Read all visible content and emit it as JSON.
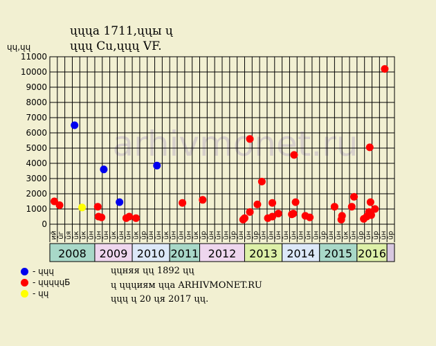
{
  "header": {
    "title": "ųųųа 1711,ųųы ų",
    "subtitle": "ųųų Cu,ųųų VF."
  },
  "watermark": "arhivmonet.ru",
  "legend": [
    {
      "label": "- ųųų",
      "color": "#0000ee"
    },
    {
      "label": "- ųųųųųБ",
      "color": "#ff0000"
    },
    {
      "label": "- ųų",
      "color": "#ffff00"
    }
  ],
  "footer": {
    "line1": "ųųняя ųų 1892 ųų",
    "line2": "ų ųųųиям ųųа ARHIVMONET.RU",
    "line3": "ųųų ų 20 ųя 2017 ųų."
  },
  "chart_data": {
    "type": "scatter",
    "title": "ųųųа 1711,ųųы ų",
    "ylabel": "ųų,ųų",
    "ylim": [
      0,
      11000
    ],
    "yticks": [
      0,
      1000,
      2000,
      3000,
      4000,
      5000,
      6000,
      7000,
      8000,
      9000,
      10000,
      11000
    ],
    "grid": true,
    "months": [
      "ий",
      "ūг",
      "ūя",
      "ūк",
      "ūк",
      "ūн",
      "ūн",
      "ūн",
      "ūк",
      "ūн",
      "ūн",
      "ūк",
      "ūр",
      "ūн",
      "ūн",
      "ūк",
      "ūн",
      "ūн",
      "ūн",
      "ūк",
      "ūр",
      "ūн",
      "ūн",
      "ūн",
      "ūр",
      "ūн",
      "ūн",
      "ūр",
      "ūн",
      "ūн",
      "ūн",
      "ūн",
      "ūн",
      "ūн",
      "ūн",
      "ūн",
      "ūр",
      "ūн",
      "ūн",
      "ūк",
      "ūн",
      "ūр",
      "ūн",
      "ūр",
      "ūн",
      "ūр"
    ],
    "years": [
      {
        "label": "2008",
        "start": 0,
        "end": 6,
        "color": "#a8d8c8"
      },
      {
        "label": "2009",
        "start": 6,
        "end": 11,
        "color": "#eed6ee"
      },
      {
        "label": "2010",
        "start": 11,
        "end": 16,
        "color": "#dce8f8"
      },
      {
        "label": "2011",
        "start": 16,
        "end": 20,
        "color": "#a8d8c8"
      },
      {
        "label": "2012",
        "start": 20,
        "end": 26,
        "color": "#eed6ee"
      },
      {
        "label": "2013",
        "start": 26,
        "end": 31,
        "color": "#ddf0a8"
      },
      {
        "label": "2014",
        "start": 31,
        "end": 36,
        "color": "#dce8f8"
      },
      {
        "label": "2015",
        "start": 36,
        "end": 41,
        "color": "#a8d8c8"
      },
      {
        "label": "2016",
        "start": 41,
        "end": 45,
        "color": "#ddf0a8"
      },
      {
        "label": "",
        "start": 45,
        "end": 46,
        "color": "#d8c8e0"
      }
    ],
    "series": [
      {
        "color": "#0000ee",
        "points": [
          [
            3.3,
            6500
          ],
          [
            7.2,
            3600
          ],
          [
            9.3,
            1450
          ],
          [
            14.3,
            3850
          ]
        ]
      },
      {
        "color": "#ff0000",
        "points": [
          [
            0.6,
            1500
          ],
          [
            1.3,
            1250
          ],
          [
            6.4,
            1150
          ],
          [
            6.5,
            500
          ],
          [
            6.9,
            450
          ],
          [
            10.2,
            400
          ],
          [
            10.6,
            500
          ],
          [
            11.5,
            400
          ],
          [
            17.7,
            1400
          ],
          [
            20.4,
            1600
          ],
          [
            25.8,
            300
          ],
          [
            26.0,
            400
          ],
          [
            26.7,
            5600
          ],
          [
            26.7,
            800
          ],
          [
            27.7,
            1300
          ],
          [
            28.3,
            2800
          ],
          [
            29.1,
            400
          ],
          [
            29.7,
            500
          ],
          [
            29.7,
            1400
          ],
          [
            30.5,
            700
          ],
          [
            32.3,
            650
          ],
          [
            32.5,
            700
          ],
          [
            32.6,
            4550
          ],
          [
            32.8,
            1450
          ],
          [
            34.1,
            550
          ],
          [
            34.7,
            450
          ],
          [
            38.0,
            1150
          ],
          [
            38.9,
            300
          ],
          [
            39.0,
            550
          ],
          [
            40.3,
            1150
          ],
          [
            40.6,
            1800
          ],
          [
            41.9,
            350
          ],
          [
            42.3,
            500
          ],
          [
            42.6,
            800
          ],
          [
            42.7,
            5050
          ],
          [
            42.8,
            1450
          ],
          [
            42.9,
            600
          ],
          [
            43.4,
            1000
          ],
          [
            44.7,
            10200
          ]
        ]
      },
      {
        "color": "#ffff00",
        "points": [
          [
            4.3,
            1100
          ]
        ]
      }
    ]
  }
}
